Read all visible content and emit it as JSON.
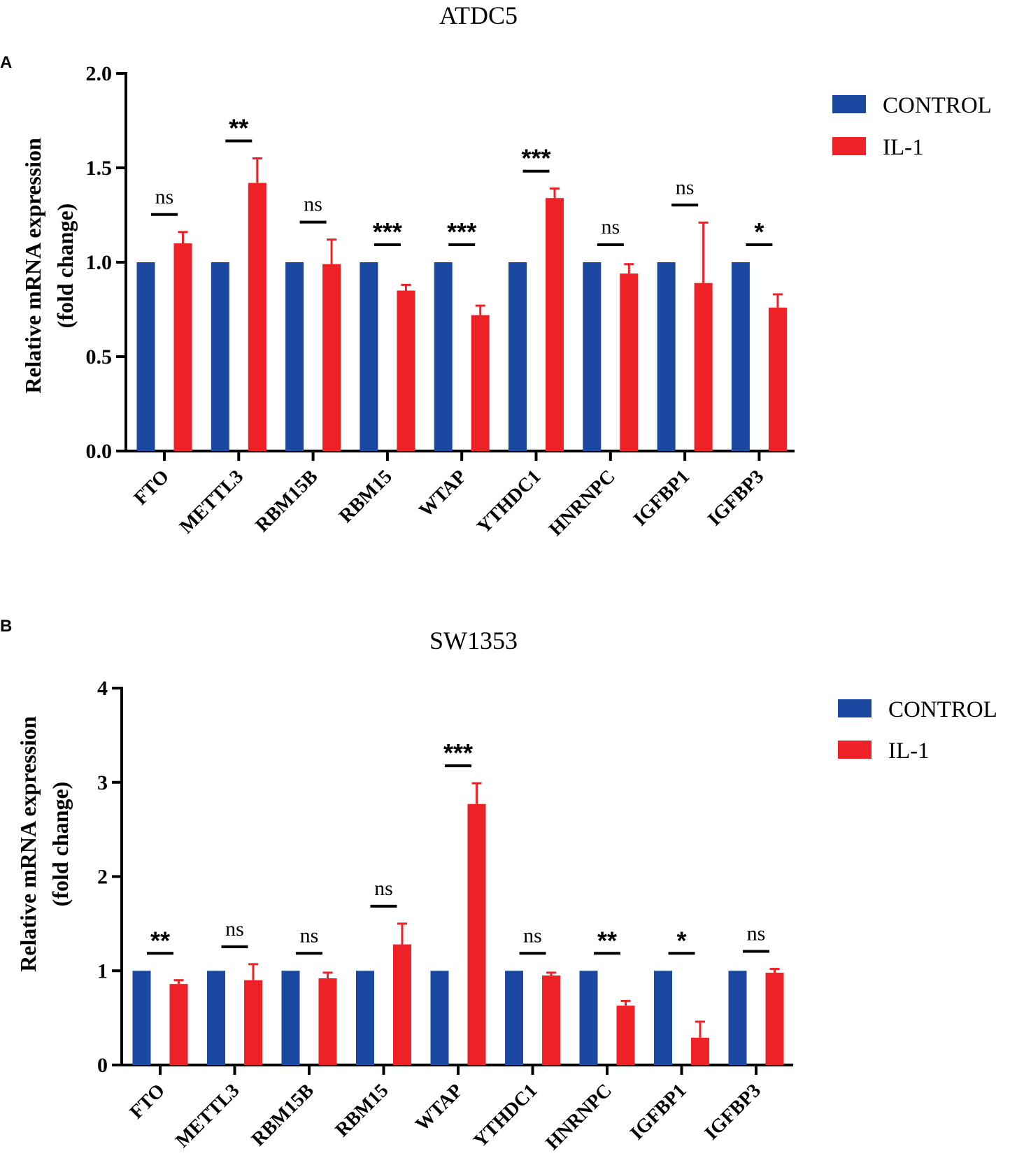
{
  "colors": {
    "control": "#1b48a0",
    "il1": "#ee2127",
    "axis": "#000000"
  },
  "chart_data": [
    {
      "type": "bar",
      "panel_label": "A",
      "title": "ATDC5",
      "ylabel_line1": "Relative mRNA expression",
      "ylabel_line2": "(fold change)",
      "ylim": [
        0,
        2.0
      ],
      "yticks": [
        "0.0",
        "0.5",
        "1.0",
        "1.5",
        "2.0"
      ],
      "ytick_values": [
        0,
        0.5,
        1.0,
        1.5,
        2.0
      ],
      "categories": [
        "FTO",
        "METTL3",
        "RBM15B",
        "RBM15",
        "WTAP",
        "YTHDC1",
        "HNRNPC",
        "IGFBP1",
        "IGFBP3"
      ],
      "series": [
        {
          "name": "CONTROL",
          "values": [
            1.0,
            1.0,
            1.0,
            1.0,
            1.0,
            1.0,
            1.0,
            1.0,
            1.0
          ]
        },
        {
          "name": "IL-1",
          "values": [
            1.1,
            1.42,
            0.99,
            0.85,
            0.72,
            1.34,
            0.94,
            0.89,
            0.76
          ],
          "errors": [
            0.06,
            0.13,
            0.13,
            0.03,
            0.05,
            0.05,
            0.05,
            0.32,
            0.07
          ]
        }
      ],
      "significance": [
        "ns",
        "**",
        "ns",
        "***",
        "***",
        "***",
        "ns",
        "ns",
        "*"
      ],
      "legend": [
        "CONTROL",
        "IL-1"
      ],
      "legend_position": "top-right"
    },
    {
      "type": "bar",
      "panel_label": "B",
      "title": "SW1353",
      "ylabel_line1": "Relative mRNA expression",
      "ylabel_line2": "(fold change)",
      "ylim": [
        0,
        4
      ],
      "yticks": [
        "0",
        "1",
        "2",
        "3",
        "4"
      ],
      "ytick_values": [
        0,
        1,
        2,
        3,
        4
      ],
      "categories": [
        "FTO",
        "METTL3",
        "RBM15B",
        "RBM15",
        "WTAP",
        "YTHDC1",
        "HNRNPC",
        "IGFBP1",
        "IGFBP3"
      ],
      "series": [
        {
          "name": "CONTROL",
          "values": [
            1,
            1,
            1,
            1,
            1,
            1,
            1,
            1,
            1
          ]
        },
        {
          "name": "IL-1",
          "values": [
            0.86,
            0.9,
            0.92,
            1.28,
            2.77,
            0.95,
            0.63,
            0.29,
            0.98
          ],
          "errors": [
            0.04,
            0.17,
            0.06,
            0.22,
            0.22,
            0.03,
            0.05,
            0.17,
            0.04
          ]
        }
      ],
      "significance": [
        "**",
        "ns",
        "ns",
        "ns",
        "***",
        "ns",
        "**",
        "*",
        "ns"
      ],
      "legend": [
        "CONTROL",
        "IL-1"
      ],
      "legend_position": "top-right"
    }
  ]
}
